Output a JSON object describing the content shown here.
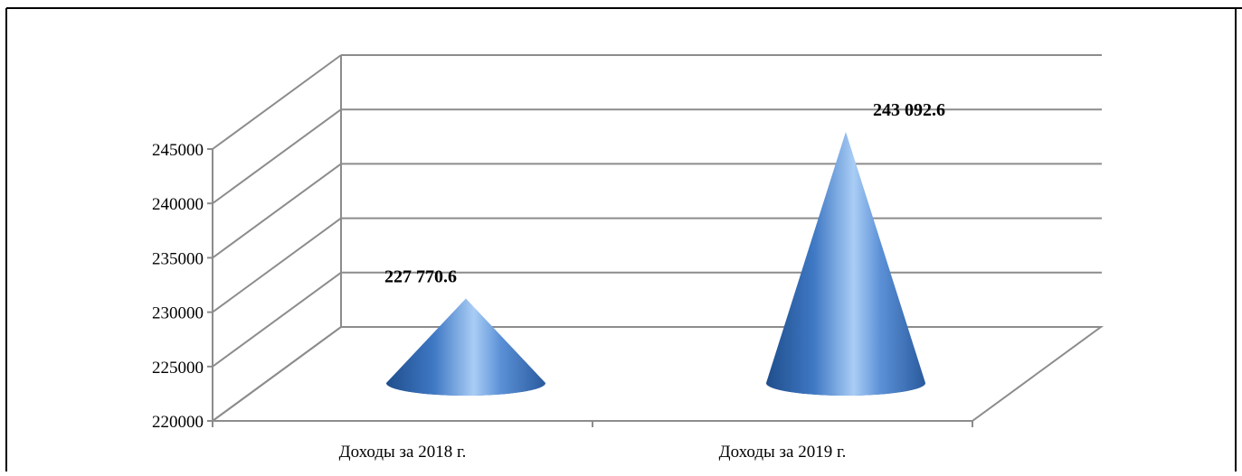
{
  "chart_data": {
    "type": "bar",
    "style": "3d-cone",
    "categories": [
      "Доходы за  2018 г.",
      "Доходы за  2019 г."
    ],
    "values": [
      227770.6,
      243092.6
    ],
    "data_labels": [
      "227 770.6",
      "243 092.6"
    ],
    "title": "",
    "xlabel": "",
    "ylabel": "",
    "ylim": [
      220000,
      245000
    ],
    "y_ticks": [
      "220000",
      "225000",
      "230000",
      "235000",
      "240000",
      "245000"
    ],
    "y_tick_values": [
      220000,
      225000,
      230000,
      235000,
      240000,
      245000
    ],
    "grid": true,
    "legend": "none",
    "colors": {
      "cone_dark": "#2c5fa3",
      "cone_mid": "#4f86cf",
      "cone_light": "#a9cdf5",
      "grid": "#8c8c8c",
      "frame": "#000000"
    }
  }
}
